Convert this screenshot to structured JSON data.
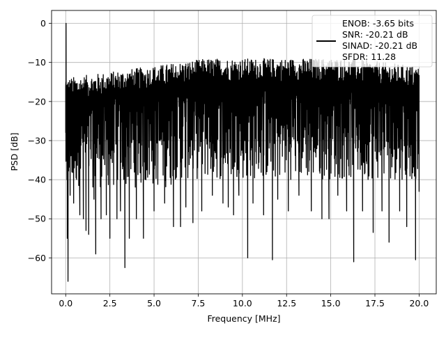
{
  "chart_data": {
    "type": "line",
    "xlabel": "Frequency [MHz]",
    "ylabel": "PSD [dB]",
    "xlim": [
      -0.8,
      20.97
    ],
    "ylim": [
      -69.2,
      3.3
    ],
    "xticks": [
      0.0,
      2.5,
      5.0,
      7.5,
      10.0,
      12.5,
      15.0,
      17.5,
      20.0
    ],
    "xtick_labels": [
      "0.0",
      "2.5",
      "5.0",
      "7.5",
      "10.0",
      "12.5",
      "15.0",
      "17.5",
      "20.0"
    ],
    "yticks": [
      0,
      -10,
      -20,
      -30,
      -40,
      -50,
      -60
    ],
    "ytick_labels": [
      "0",
      "−10",
      "−20",
      "−30",
      "−40",
      "−50",
      "−60"
    ],
    "grid": true,
    "legend_position": "top-right",
    "series_color": "#000000",
    "legend_lines": [
      "ENOB: -3.65 bits",
      "SNR: -20.21 dB",
      "SINAD: -20.21 dB",
      "SFDR: 11.28"
    ],
    "series": [
      {
        "points": [
          [
            0.0,
            -28
          ],
          [
            0.01,
            -15
          ],
          [
            0.02,
            0
          ],
          [
            0.035,
            -30
          ],
          [
            0.05,
            -18
          ],
          [
            0.07,
            -40
          ],
          [
            0.09,
            -55
          ],
          [
            0.11,
            -45
          ],
          [
            0.13,
            -66
          ],
          [
            0.16,
            -35
          ],
          [
            0.2,
            -22
          ],
          [
            0.25,
            -44
          ],
          [
            0.3,
            -20
          ],
          [
            0.35,
            -38
          ],
          [
            0.45,
            -46
          ],
          [
            0.5,
            -25
          ],
          [
            0.8,
            -49
          ],
          [
            1.0,
            -50
          ],
          [
            1.15,
            -53
          ],
          [
            1.3,
            -54
          ],
          [
            1.6,
            -45
          ],
          [
            1.7,
            -59
          ],
          [
            2.0,
            -50
          ],
          [
            2.3,
            -49
          ],
          [
            2.5,
            -55
          ],
          [
            2.9,
            -50
          ],
          [
            3.1,
            -48
          ],
          [
            3.35,
            -62.5
          ],
          [
            3.6,
            -55
          ],
          [
            4.0,
            -50
          ],
          [
            4.4,
            -55
          ],
          [
            5.0,
            -48
          ],
          [
            5.6,
            -46
          ],
          [
            6.1,
            -52
          ],
          [
            6.5,
            -52
          ],
          [
            6.8,
            -47
          ],
          [
            7.2,
            -51
          ],
          [
            7.7,
            -48
          ],
          [
            8.3,
            -44
          ],
          [
            8.9,
            -46
          ],
          [
            9.2,
            -47
          ],
          [
            9.5,
            -49
          ],
          [
            9.8,
            -44
          ],
          [
            10.3,
            -60
          ],
          [
            10.6,
            -46
          ],
          [
            11.2,
            -49
          ],
          [
            11.7,
            -60.5
          ],
          [
            12.0,
            -45
          ],
          [
            12.6,
            -48
          ],
          [
            13.2,
            -44
          ],
          [
            13.9,
            -48
          ],
          [
            14.5,
            -50
          ],
          [
            14.9,
            -50
          ],
          [
            15.4,
            -44
          ],
          [
            15.9,
            -48
          ],
          [
            16.3,
            -61
          ],
          [
            16.8,
            -48
          ],
          [
            17.4,
            -53.5
          ],
          [
            17.9,
            -48
          ],
          [
            18.3,
            -56
          ],
          [
            18.9,
            -48
          ],
          [
            19.3,
            -52
          ],
          [
            19.8,
            -60.5
          ],
          [
            20.0,
            -43
          ]
        ]
      }
    ]
  }
}
